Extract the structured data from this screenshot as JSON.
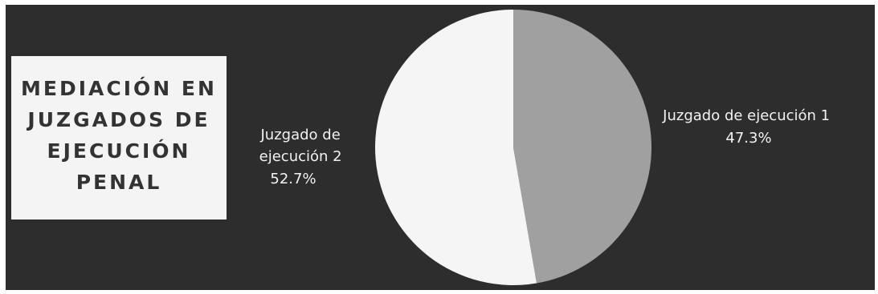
{
  "title_lines": [
    "MEDIACIÓN EN",
    "JUZGADOS DE",
    "EJECUCIÓN",
    "PENAL"
  ],
  "colors": {
    "background": "#2d2d2d",
    "title_box": "#f4f4f4",
    "title_text": "#333333",
    "label_text": "#f2f2f2"
  },
  "chart_data": {
    "type": "pie",
    "title": "MEDIACIÓN EN JUZGADOS DE EJECUCIÓN PENAL",
    "legend": "none",
    "slices": [
      {
        "label_lines": [
          "Juzgado de ejecución 1"
        ],
        "value_label": "47.3%",
        "value": 47.3,
        "color": "#a0a0a0"
      },
      {
        "label_lines": [
          "Juzgado de",
          "ejecución 2"
        ],
        "value_label": "52.7%",
        "value": 52.7,
        "color": "#f5f5f5"
      }
    ]
  }
}
